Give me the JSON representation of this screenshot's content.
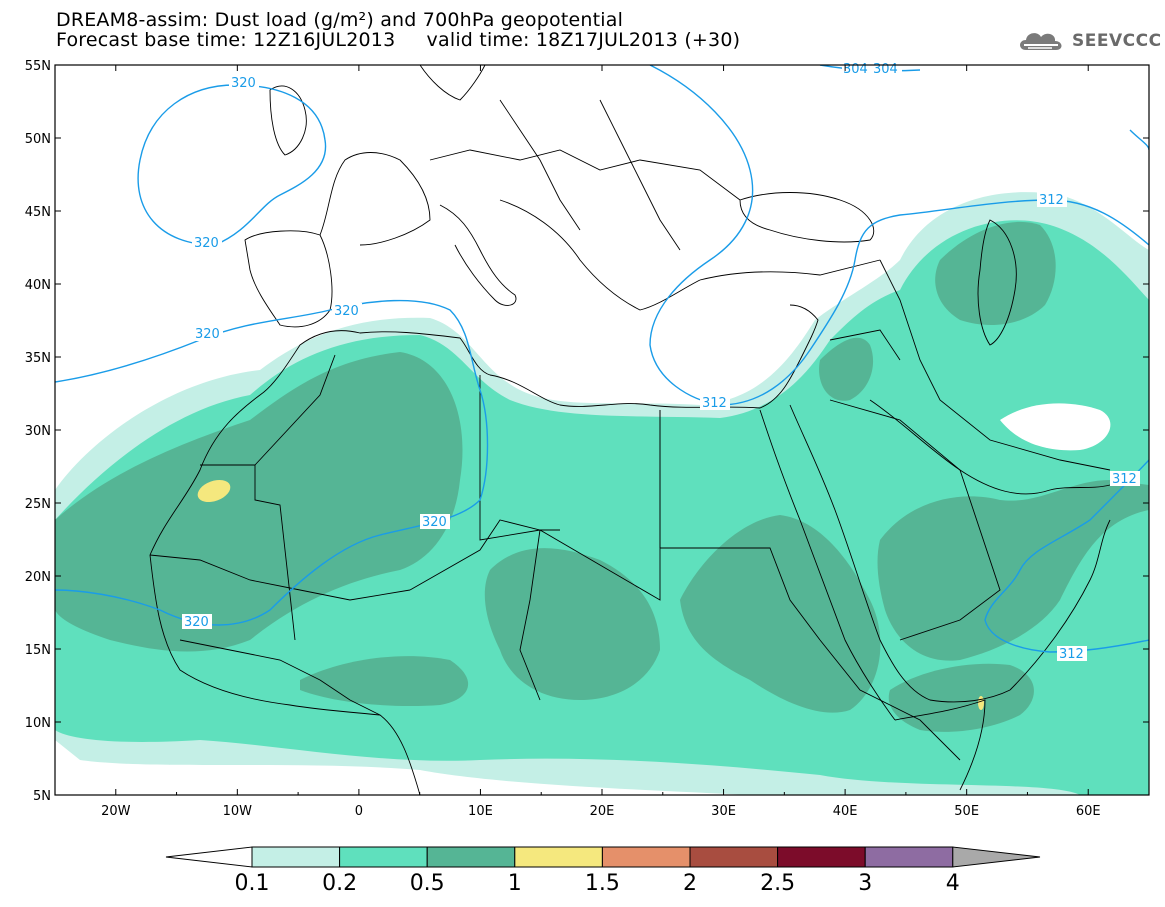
{
  "header": {
    "title_line1": "DREAM8-assim: Dust load (g/m²) and 700hPa geopotential",
    "title_line2": "Forecast base time: 12Z16JUL2013     valid time: 18Z17JUL2013 (+30)"
  },
  "logo": {
    "text": "SEEVCCC",
    "icon": "cloud-logo-icon"
  },
  "map": {
    "lat_labels": [
      "55N",
      "50N",
      "45N",
      "40N",
      "35N",
      "30N",
      "25N",
      "20N",
      "15N",
      "10N",
      "5N"
    ],
    "lon_labels": [
      "20W",
      "10W",
      "0",
      "10E",
      "20E",
      "30E",
      "40E",
      "50E",
      "60E"
    ],
    "contour_labels": [
      "320",
      "320",
      "320",
      "320",
      "320",
      "320",
      "312",
      "312",
      "312",
      "312",
      "304",
      "304"
    ],
    "region": {
      "lon_min": -25,
      "lon_max": 65,
      "lat_min": 5,
      "lat_max": 55
    }
  },
  "colorbar": {
    "labels": [
      "0.1",
      "0.2",
      "0.5",
      "1",
      "1.5",
      "2",
      "2.5",
      "3",
      "4"
    ],
    "colors": [
      "#c4efe6",
      "#5fe0bd",
      "#55b595",
      "#f5e87e",
      "#e5906a",
      "#a84d40",
      "#7c0c2a",
      "#8e6ca2"
    ],
    "extend_low_color": "#ffffff",
    "extend_high_color": "#a9a9a9"
  },
  "colors": {
    "contour": "#1a9ce8",
    "dust_light": "#c4efe6",
    "dust_mid": "#5fe0bd",
    "dust_dark": "#55b595",
    "dust_high": "#f5e87e",
    "border": "#000000"
  }
}
